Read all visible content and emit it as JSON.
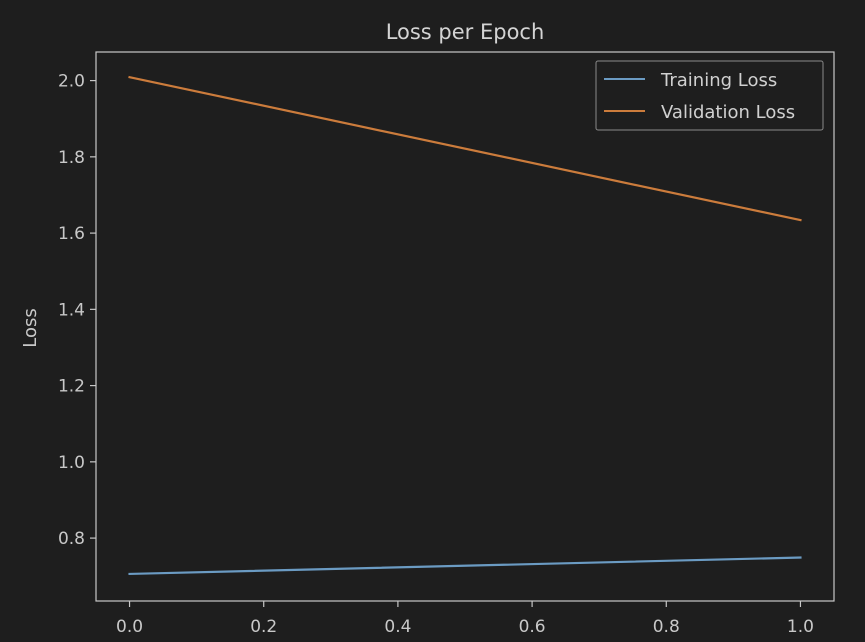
{
  "chart_data": {
    "type": "line",
    "title": "Loss per Epoch",
    "xlabel": "",
    "ylabel": "Loss",
    "xlim": [
      -0.05,
      1.05
    ],
    "ylim": [
      0.635,
      2.075
    ],
    "x_ticks": [
      0.0,
      0.2,
      0.4,
      0.6,
      0.8,
      1.0
    ],
    "x_tick_labels": [
      "0.0",
      "0.2",
      "0.4",
      "0.6",
      "0.8",
      "1.0"
    ],
    "y_ticks": [
      0.8,
      1.0,
      1.2,
      1.4,
      1.6,
      1.8,
      2.0
    ],
    "y_tick_labels": [
      "0.8",
      "1.0",
      "1.2",
      "1.4",
      "1.6",
      "1.8",
      "2.0"
    ],
    "grid": false,
    "legend_position": "top-right",
    "series": [
      {
        "name": "Training Loss",
        "color": "#6b9bc3",
        "x": [
          0.0,
          1.0
        ],
        "y": [
          0.706,
          0.749
        ]
      },
      {
        "name": "Validation Loss",
        "color": "#cc7c3c",
        "x": [
          0.0,
          1.0
        ],
        "y": [
          2.009,
          1.634
        ]
      }
    ],
    "colors": {
      "background": "#1e1e1e",
      "axes_edge": "#c8c8c8",
      "text": "#c8c8c8",
      "legend_edge": "#8a8a8a"
    }
  }
}
